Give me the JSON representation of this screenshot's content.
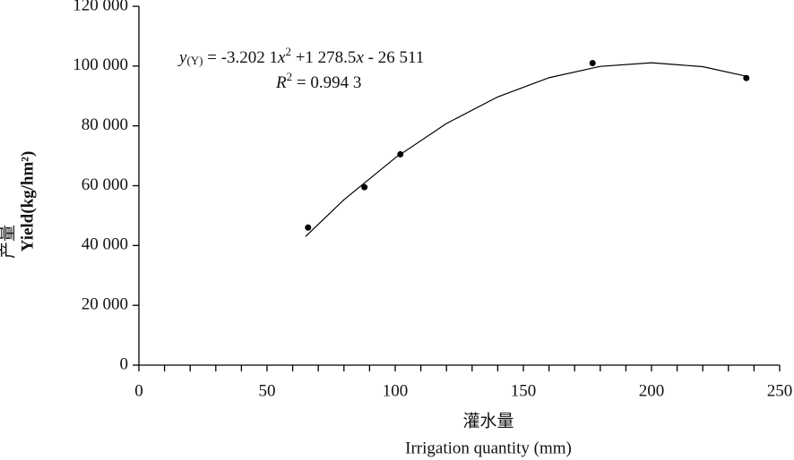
{
  "chart_data": {
    "type": "scatter",
    "x_label_cn": "灌水量",
    "x_label": "Irrigation quantity (mm)",
    "y_label_cn": "产量",
    "y_label": "Yield(kg/hm²)",
    "equation": [
      "y",
      "(Y)",
      " = -3.202 1",
      "x",
      "2",
      " +1 278.5",
      "x",
      " - 26 511"
    ],
    "r_squared": [
      "R",
      "2",
      " = 0.994 3"
    ],
    "x": [
      66,
      88,
      102,
      177,
      237
    ],
    "values": [
      46000,
      59500,
      70500,
      101000,
      96000
    ],
    "color": "#000000",
    "fit": {
      "x": [
        65,
        80,
        100,
        120,
        140,
        160,
        180,
        200,
        220,
        237
      ],
      "values": [
        43000,
        55300,
        69300,
        80800,
        89700,
        96100,
        99900,
        101100,
        99800,
        96600
      ]
    },
    "xlim": [
      0,
      250
    ],
    "xticks": [
      0,
      50,
      100,
      150,
      200,
      250
    ],
    "xminorticks": [
      10,
      20,
      30,
      40,
      60,
      70,
      80,
      90,
      110,
      120,
      130,
      140,
      160,
      170,
      180,
      190,
      210,
      220,
      230,
      240
    ],
    "ylim": [
      0,
      120000
    ],
    "yticks": [
      0,
      {
        "value": 20000,
        "label": "20 000"
      },
      {
        "value": 40000,
        "label": "40 000"
      },
      {
        "value": 60000,
        "label": "60 000"
      },
      {
        "value": 80000,
        "label": "80 000"
      },
      {
        "value": 100000,
        "label": "100 000"
      },
      {
        "value": 120000,
        "label": "120 000"
      }
    ]
  }
}
